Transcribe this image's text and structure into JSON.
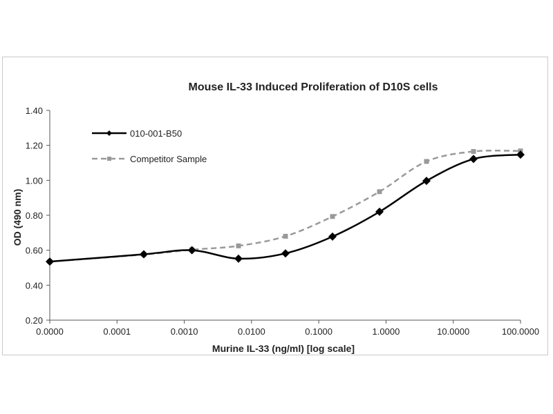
{
  "chart_data": {
    "type": "line",
    "title": "Mouse IL-33 Induced Proliferation of D10S cells",
    "xlabel": "Murine IL-33 (ng/ml) [log scale]",
    "ylabel": "OD (490 nm)",
    "x_scale": "log",
    "ylim": [
      0.2,
      1.4
    ],
    "x_tick_labels": [
      "0.0000",
      "0.0001",
      "0.0010",
      "0.0100",
      "0.1000",
      "1.0000",
      "10.0000",
      "100.0000"
    ],
    "y_tick_labels": [
      "0.20",
      "0.40",
      "0.60",
      "0.80",
      "1.00",
      "1.20",
      "1.40"
    ],
    "y_ticks": [
      0.2,
      0.4,
      0.6,
      0.8,
      1.0,
      1.2,
      1.4
    ],
    "grid": false,
    "legend_position": "top-left",
    "series": [
      {
        "name": "010-001-B50",
        "color": "#000000",
        "line_style": "solid",
        "marker": "diamond",
        "x": [
          1e-05,
          0.00025,
          0.0013,
          0.0064,
          0.032,
          0.16,
          0.8,
          4.0,
          20.0,
          100.0
        ],
        "y": [
          0.535,
          0.577,
          0.6,
          0.552,
          0.582,
          0.678,
          0.82,
          0.997,
          1.122,
          1.147
        ]
      },
      {
        "name": "Competitor Sample",
        "color": "#999999",
        "line_style": "dashed",
        "marker": "square",
        "x": [
          1e-05,
          0.00025,
          0.0013,
          0.0064,
          0.032,
          0.16,
          0.8,
          4.0,
          20.0,
          100.0
        ],
        "y": [
          0.535,
          0.575,
          0.603,
          0.625,
          0.68,
          0.793,
          0.935,
          1.108,
          1.165,
          1.168
        ]
      }
    ]
  }
}
